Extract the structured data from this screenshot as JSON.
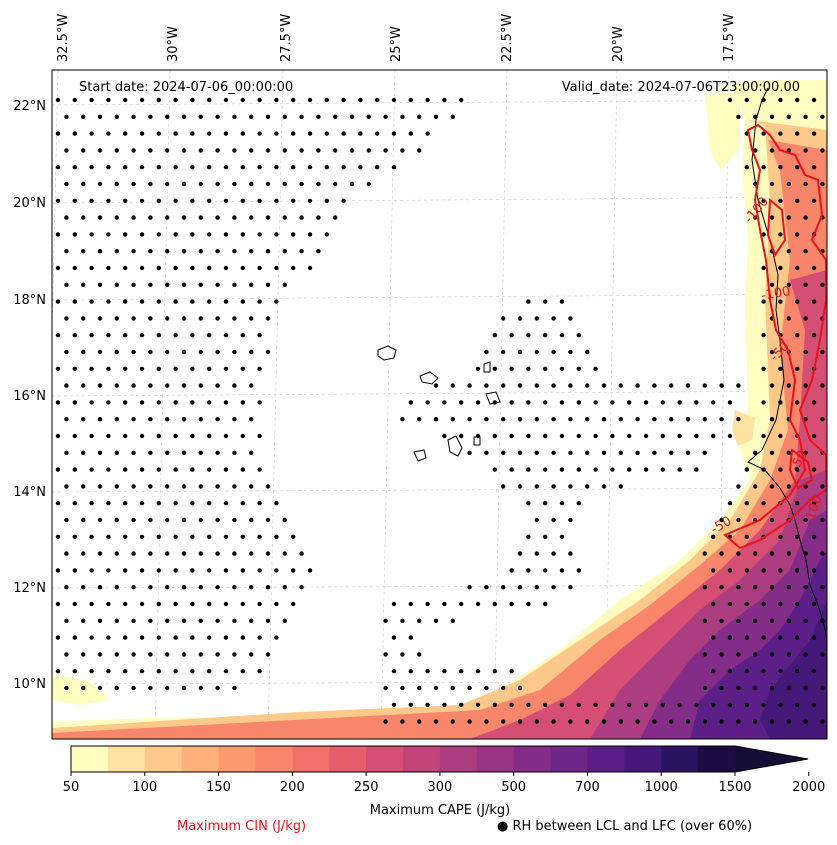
{
  "header": {
    "start_date": "Start date: 2024-07-06_00:00:00",
    "valid_date": "Valid_date: 2024-07-06T23:00:00.00"
  },
  "axes": {
    "lon_labels": [
      "32.5°W",
      "30°W",
      "27.5°W",
      "25°W",
      "22.5°W",
      "20°W",
      "17.5°W"
    ],
    "lat_labels": [
      "22°N",
      "20°N",
      "18°N",
      "16°N",
      "14°N",
      "12°N",
      "10°N"
    ]
  },
  "contour_labels": [
    "-100",
    "-100",
    "-50",
    "-50",
    "-50",
    "-100"
  ],
  "colorbar": {
    "tick_labels": [
      "50",
      "100",
      "150",
      "200",
      "250",
      "300",
      "500",
      "700",
      "1000",
      "1500",
      "2000"
    ],
    "label": "Maximum CAPE (J/kg)",
    "colors": [
      "#fffcbf",
      "#fee2a0",
      "#fdc98a",
      "#fdb07a",
      "#fc9a6e",
      "#f8866a",
      "#f1716a",
      "#e55e6e",
      "#d54e74",
      "#c2447b",
      "#ad3d81",
      "#983585",
      "#832d88",
      "#6f2689",
      "#5b1f87",
      "#44197a",
      "#2c1360",
      "#1b0c41"
    ],
    "extend_color": "#150e37"
  },
  "legend": {
    "cin_label": "Maximum CIN (J/kg)",
    "cin_color": "#e8121c",
    "rh_marker": "●",
    "rh_label": "RH between LCL and LFC (over 60%)"
  }
}
